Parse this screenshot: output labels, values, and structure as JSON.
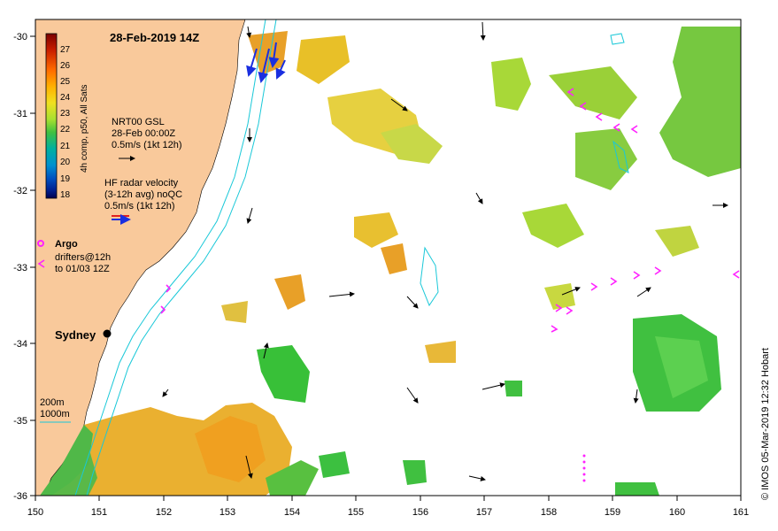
{
  "map": {
    "title": "28-Feb-2019 14Z",
    "credit": "© IMOS 05-Mar-2019 12:32 Hobart",
    "x_ticks": [
      "150",
      "151",
      "152",
      "153",
      "154",
      "155",
      "156",
      "157",
      "158",
      "159",
      "160",
      "161"
    ],
    "y_ticks": [
      "-30",
      "-31",
      "-32",
      "-33",
      "-34",
      "-35",
      "-36"
    ]
  },
  "colorbar": {
    "ticks": [
      "27",
      "26",
      "25",
      "24",
      "23",
      "22",
      "21",
      "20",
      "19",
      "18"
    ],
    "label": "4h comp, p50, All Sats",
    "colors": [
      "#7a0000",
      "#c81e00",
      "#ff6a00",
      "#ffb000",
      "#f0e020",
      "#a8e030",
      "#40c040",
      "#00b0a0",
      "#0090d0",
      "#0050c0",
      "#002090",
      "#000050"
    ]
  },
  "legend": {
    "gsl_lines": [
      "NRT00 GSL",
      "28-Feb 00:00Z",
      "0.5m/s (1kt 12h)"
    ],
    "hf_lines": [
      "HF radar velocity",
      "(3-12h avg) noQC",
      "0.5m/s (1kt 12h)"
    ],
    "argo_label": "Argo",
    "drifter_lines": [
      "drifters@12h",
      "to 01/03 12Z"
    ],
    "city": "Sydney",
    "isobath_200": "200m",
    "isobath_1000": "1000m"
  },
  "colors": {
    "land": "#f9c99b",
    "isobath": "#19c8d8",
    "argo": "#ff22ff",
    "hf_arrow": "#1a2fe0",
    "sst_green": "#3cc83c",
    "sst_yellowgreen": "#a0d830",
    "sst_yellow": "#e8c820",
    "sst_orange": "#e8a028"
  }
}
